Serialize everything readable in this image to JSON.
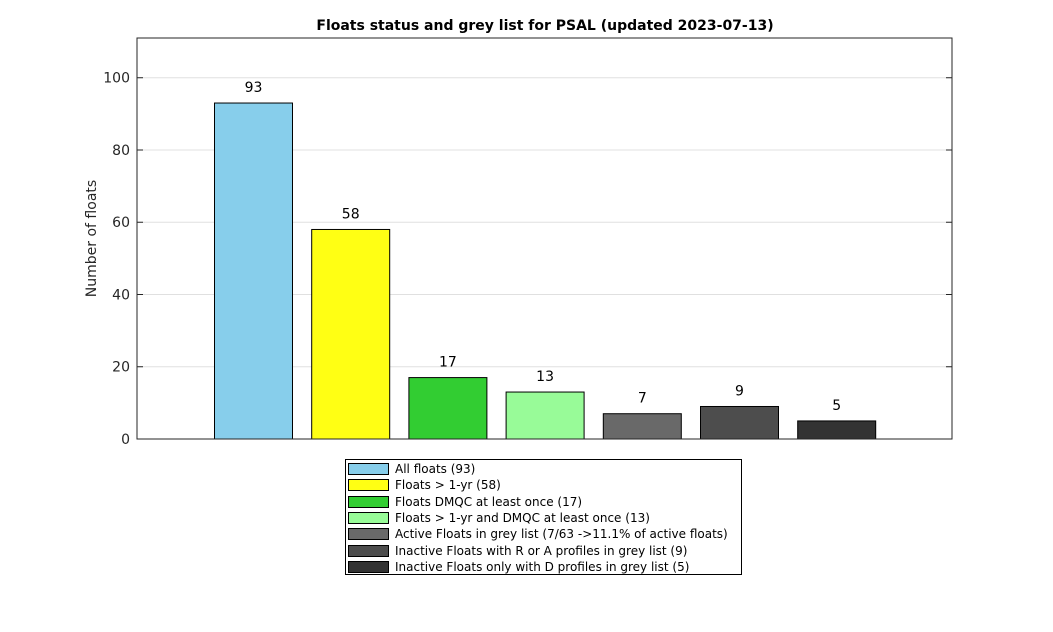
{
  "chart_data": {
    "type": "bar",
    "title": "Floats status and grey list for PSAL (updated 2023-07-13)",
    "xlabel": "",
    "ylabel": "Number of floats",
    "ylim": [
      0,
      111
    ],
    "yticks": [
      0,
      20,
      40,
      60,
      80,
      100
    ],
    "grid": "horizontal",
    "legend_position": "bottom",
    "series": [
      {
        "name": "All floats (93)",
        "value": 93,
        "color": "#87ceeb"
      },
      {
        "name": "Floats > 1-yr (58)",
        "value": 58,
        "color": "#ffff14"
      },
      {
        "name": "Floats DMQC at least once (17)",
        "value": 17,
        "color": "#32cd32"
      },
      {
        "name": "Floats > 1-yr and DMQC at least once (13)",
        "value": 13,
        "color": "#98fb98"
      },
      {
        "name": "Active Floats in grey list (7/63 ->11.1% of active floats)",
        "value": 7,
        "color": "#696969"
      },
      {
        "name": "Inactive Floats with R or A profiles in grey list (9)",
        "value": 9,
        "color": "#4d4d4d"
      },
      {
        "name": "Inactive Floats only with D profiles in grey list (5)",
        "value": 5,
        "color": "#333333"
      }
    ]
  }
}
